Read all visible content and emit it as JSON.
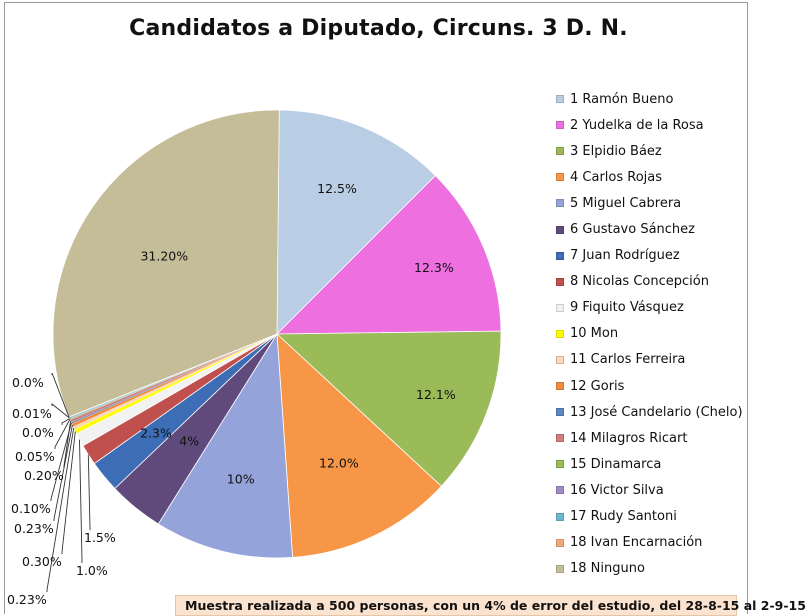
{
  "chart_data": {
    "type": "pie",
    "title": "Candidatos a Diputado, Circuns. 3 D. N.",
    "legend_position": "right",
    "slices": [
      {
        "name": "1 Ramón Bueno",
        "value": 12.5,
        "label": "12.5%",
        "color": "#b9cde5"
      },
      {
        "name": "2 Yudelka de la Rosa",
        "value": 12.3,
        "label": "12.3%",
        "color": "#ee6fe0"
      },
      {
        "name": "3 Elpidio Báez",
        "value": 12.1,
        "label": "12.1%",
        "color": "#9bbb59"
      },
      {
        "name": "4 Carlos Rojas",
        "value": 12.0,
        "label": "12.0%",
        "color": "#f79646"
      },
      {
        "name": "5 Miguel Cabrera",
        "value": 10,
        "label": "10%",
        "color": "#95a3db"
      },
      {
        "name": "6 Gustavo Sánchez",
        "value": 4,
        "label": "4%",
        "color": "#5f4a7b"
      },
      {
        "name": "7 Juan Rodríguez",
        "value": 2.3,
        "label": "2.3%",
        "color": "#3d6db5"
      },
      {
        "name": "8 Nicolas Concepción",
        "value": 1.5,
        "label": "1.5%",
        "color": "#c0504d"
      },
      {
        "name": "9 Fiquito Vásquez",
        "value": 1.0,
        "label": "1.0%",
        "color": "#f2f2f2"
      },
      {
        "name": "10 Mon",
        "value": 0.3,
        "label": "0.30%",
        "color": "#ffff00"
      },
      {
        "name": "11 Carlos Ferreira",
        "value": 0.23,
        "label": "0.23%",
        "color": "#fcd5b5"
      },
      {
        "name": "12 Goris",
        "value": 0.23,
        "label": "0.23%",
        "color": "#f38b3c"
      },
      {
        "name": "13 José Candelario (Chelo)",
        "value": 0.1,
        "label": "0.10%",
        "color": "#5b86c4"
      },
      {
        "name": "14 Milagros Ricart",
        "value": 0.2,
        "label": "0.20%",
        "color": "#d07e7e"
      },
      {
        "name": "15 Dinamarca",
        "value": 0.05,
        "label": "0.05%",
        "color": "#9bbb59"
      },
      {
        "name": "16 Victor Silva",
        "value": 0.0,
        "label": "0.0%",
        "color": "#a18bc2"
      },
      {
        "name": "17 Rudy Santoni",
        "value": 0.01,
        "label": "0.01%",
        "color": "#6fb7cf"
      },
      {
        "name": "18 Ivan Encarnación",
        "value": 0.0,
        "label": "0.0%",
        "color": "#f4a77a"
      },
      {
        "name": "18 Ninguno",
        "value": 31.2,
        "label": "31.20%",
        "color": "#c4bd97"
      }
    ]
  },
  "footnote": "Muestra realizada a 500 personas, con un 4% de error del estudio, del 28-8-15 al 2-9-15"
}
